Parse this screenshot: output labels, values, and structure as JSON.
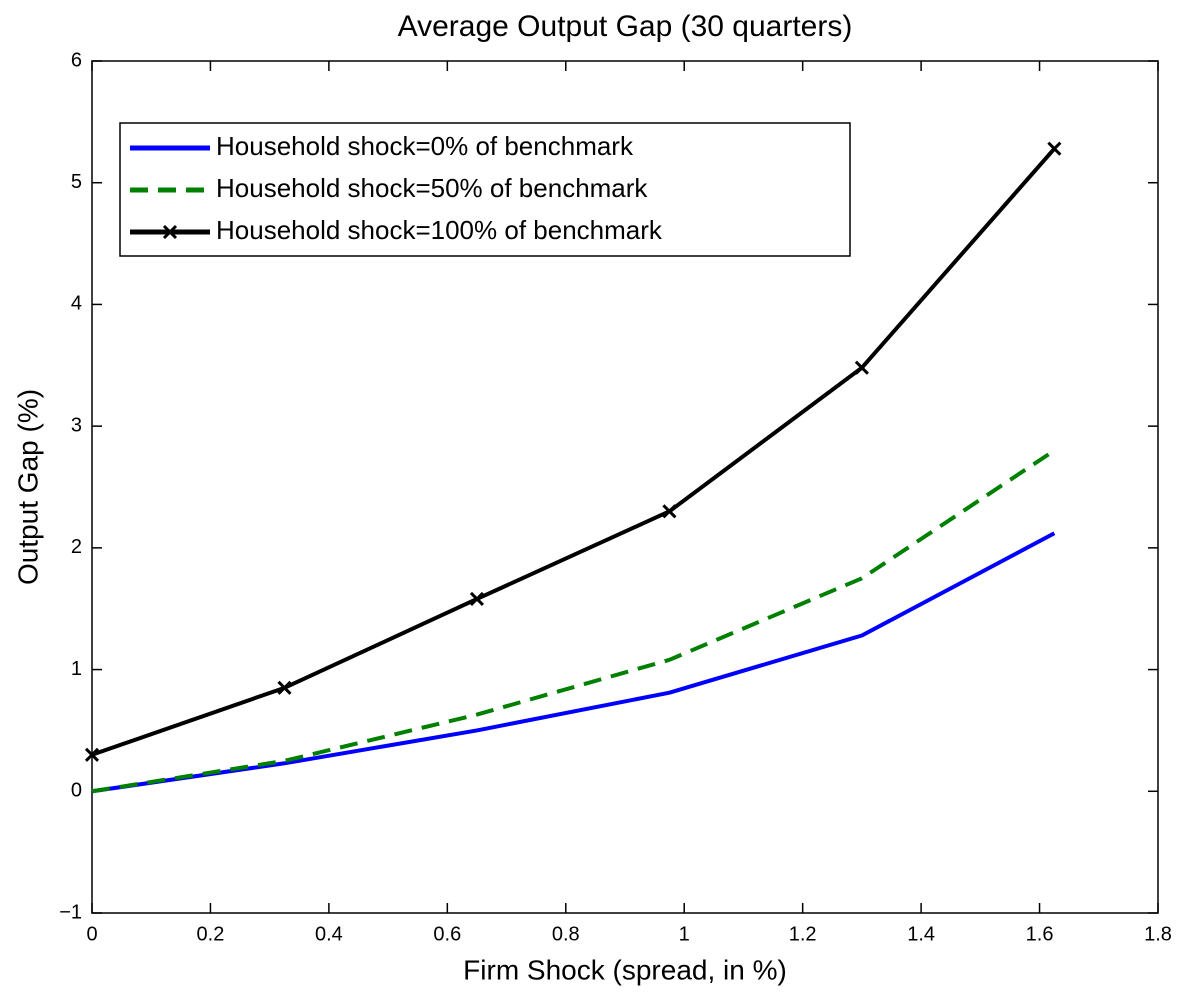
{
  "chart_data": {
    "type": "line",
    "title": "Average Output Gap (30 quarters)",
    "xlabel": "Firm Shock (spread, in %)",
    "ylabel": "Output Gap (%)",
    "x": [
      0,
      0.325,
      0.65,
      0.975,
      1.3,
      1.625
    ],
    "series": [
      {
        "name": "Household shock=0% of benchmark",
        "color": "#0000ff",
        "linestyle": "solid",
        "marker": "none",
        "values": [
          0,
          0.23,
          0.5,
          0.81,
          1.28,
          2.12
        ]
      },
      {
        "name": "Household shock=50% of benchmark",
        "color": "#008000",
        "linestyle": "dashed",
        "marker": "none",
        "values": [
          0,
          0.25,
          0.63,
          1.08,
          1.75,
          2.8
        ]
      },
      {
        "name": "Household shock=100% of benchmark",
        "color": "#000000",
        "linestyle": "solid",
        "marker": "x",
        "values": [
          0.3,
          0.85,
          1.58,
          2.3,
          3.48,
          5.28
        ]
      }
    ],
    "xlim": [
      0,
      1.8
    ],
    "xticks": [
      0,
      0.2,
      0.4,
      0.6,
      0.8,
      1,
      1.2,
      1.4,
      1.6,
      1.8
    ],
    "ylim": [
      -1,
      6
    ],
    "yticks": [
      {
        "value": -1,
        "label": "−1"
      },
      0,
      1,
      2,
      3,
      4,
      5,
      6
    ],
    "grid": false,
    "legend": "upper left"
  }
}
